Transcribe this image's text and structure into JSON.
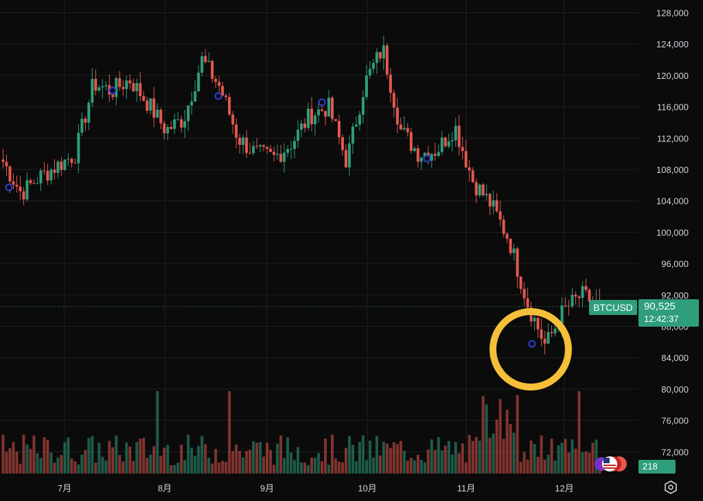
{
  "app": {
    "symbol": "BTCUSD",
    "last_price": "90,525",
    "countdown": "12:42:37",
    "volume_label": "218"
  },
  "colors": {
    "up": "#2f9e7d",
    "down": "#e3584f",
    "background": "#0b0b0b",
    "grid": "#1f1f1f",
    "highlight_circle": "#f6bf3a",
    "marker": "#2d3fd8"
  },
  "icons": {
    "settings": "hexagon-gear-icon",
    "events": "us-flag-icon"
  },
  "chart_data": {
    "type": "candlestick",
    "title": "",
    "ylim": [
      70000,
      130000
    ],
    "y_ticks": [
      "72,000",
      "76,000",
      "80,000",
      "84,000",
      "88,000",
      "92,000",
      "96,000",
      "100,000",
      "104,000",
      "108,000",
      "112,000",
      "116,000",
      "120,000",
      "124,000",
      "128,000"
    ],
    "x_ticks": [
      "7月",
      "8月",
      "9月",
      "10月",
      "11月",
      "12月"
    ],
    "current_price": 90525,
    "annotation": "highlight circle around low near 85,000 (late November)",
    "series": [
      {
        "kind": "price_path_close",
        "points": [
          [
            "6月中",
            109000
          ],
          [
            "6月下",
            105000
          ],
          [
            "6月末",
            107000
          ],
          [
            "7月初",
            108500
          ],
          [
            "7月上",
            110000
          ],
          [
            "7月中",
            119000
          ],
          [
            "7月中",
            118000
          ],
          [
            "7月下",
            119500
          ],
          [
            "7月末",
            116500
          ],
          [
            "8月初",
            113000
          ],
          [
            "8月上",
            114500
          ],
          [
            "8月中",
            122000
          ],
          [
            "8月中",
            118500
          ],
          [
            "8月下",
            112000
          ],
          [
            "8月末",
            110000
          ],
          [
            "9月初",
            109500
          ],
          [
            "9月上",
            111500
          ],
          [
            "9月中",
            115000
          ],
          [
            "9月下",
            116000
          ],
          [
            "9月末",
            109000
          ],
          [
            "10月初",
            119000
          ],
          [
            "10月上",
            123500
          ],
          [
            "10月中",
            113000
          ],
          [
            "10月中",
            110000
          ],
          [
            "10月下",
            110500
          ],
          [
            "10月末",
            113500
          ],
          [
            "11月初",
            106500
          ],
          [
            "11月上",
            103500
          ],
          [
            "11月中",
            99000
          ],
          [
            "11月下",
            91000
          ],
          [
            "11月下",
            85500
          ],
          [
            "11月末",
            90000
          ],
          [
            "12月初",
            92000
          ],
          [
            "12月上",
            90525
          ]
        ]
      },
      {
        "kind": "volume",
        "note": "volume bars along bottom; spikes near 7月中, 8月初, 11月下"
      }
    ]
  }
}
